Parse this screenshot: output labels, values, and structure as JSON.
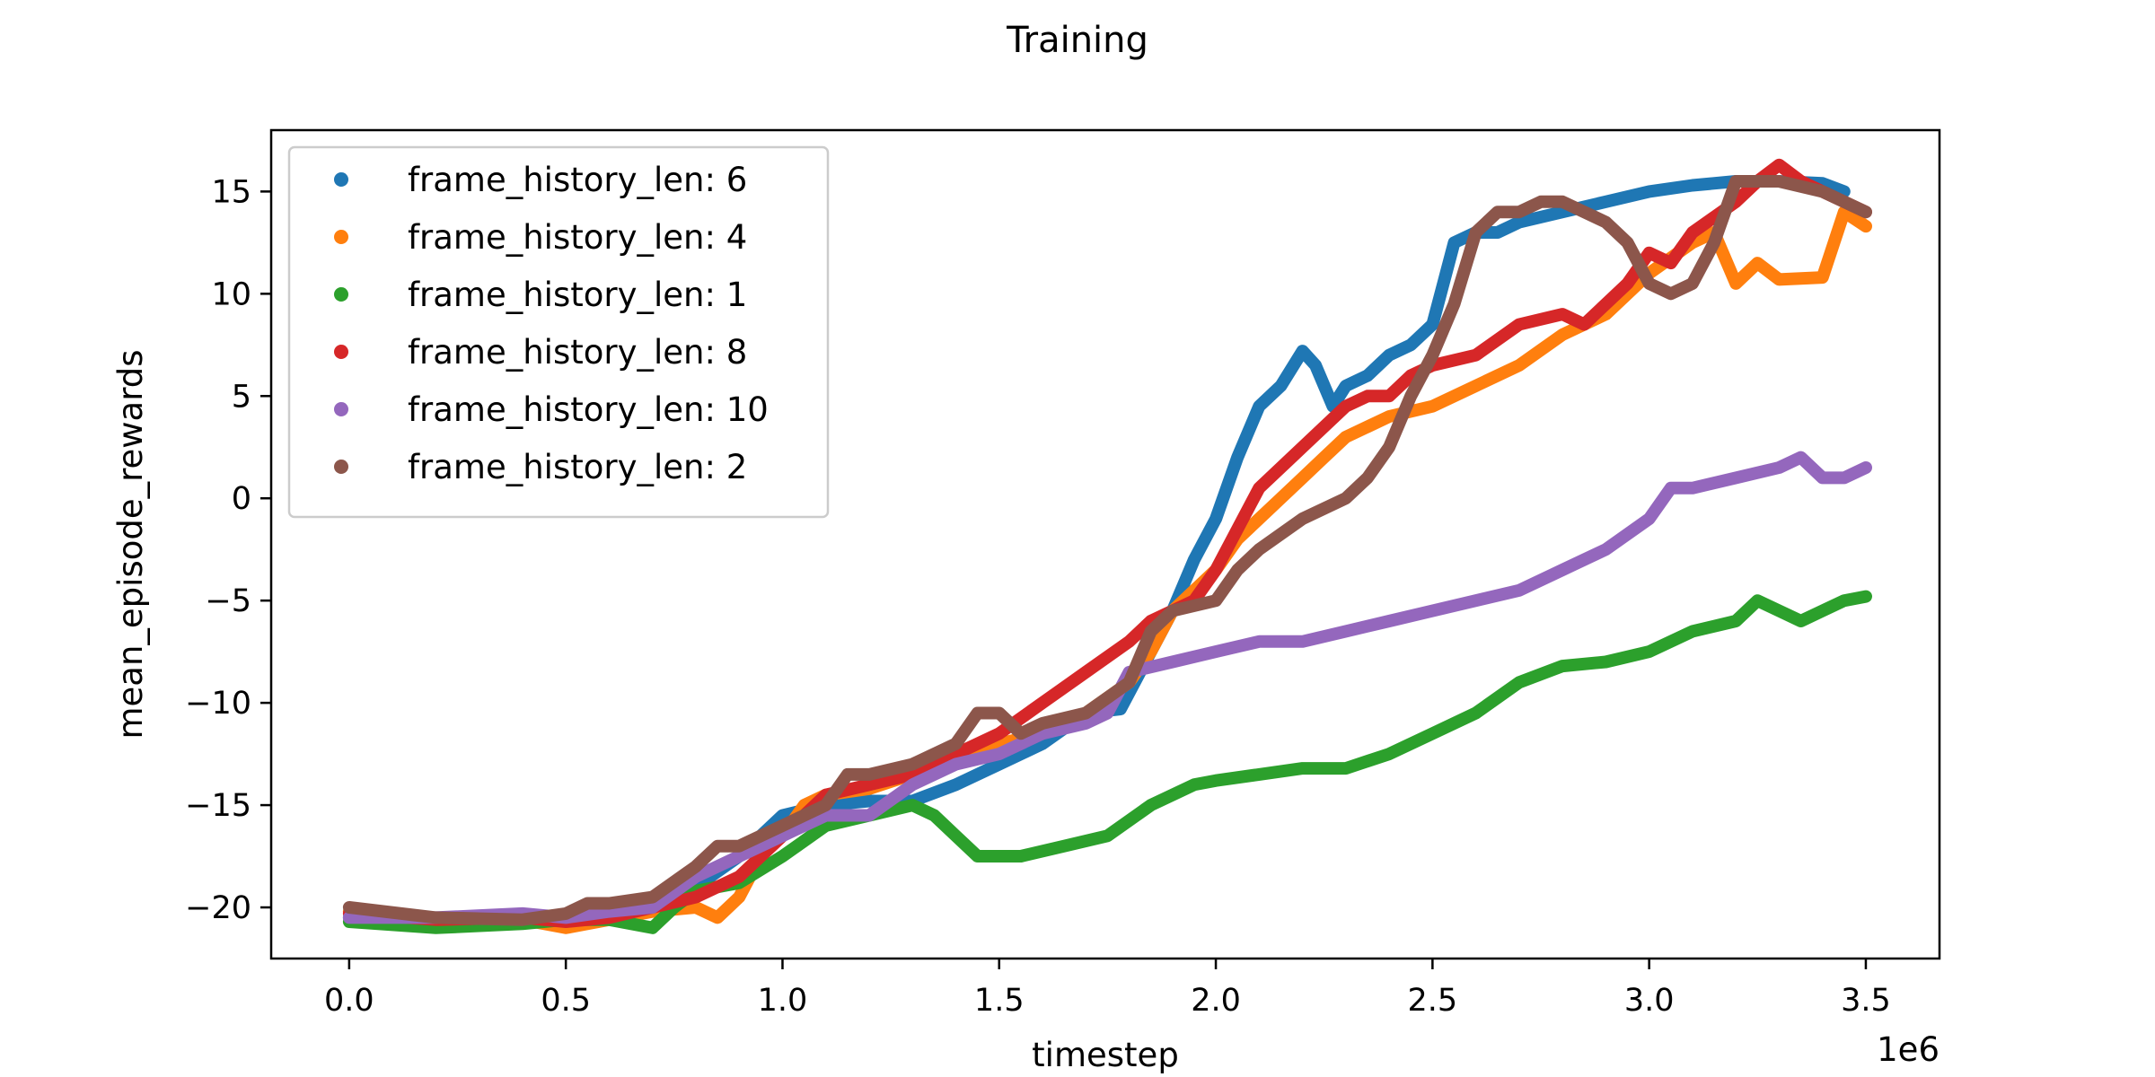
{
  "chart_data": {
    "type": "line",
    "title": "Training",
    "xlabel": "timestep",
    "ylabel": "mean_episode_rewards",
    "x_offset_label": "1e6",
    "xlim": [
      -0.18,
      3.67
    ],
    "ylim": [
      -22.5,
      18.0
    ],
    "x_ticks": [
      0.0,
      0.5,
      1.0,
      1.5,
      2.0,
      2.5,
      3.0,
      3.5
    ],
    "x_tick_labels": [
      "0.0",
      "0.5",
      "1.0",
      "1.5",
      "2.0",
      "2.5",
      "3.0",
      "3.5"
    ],
    "y_ticks": [
      -20,
      -15,
      -10,
      -5,
      0,
      5,
      10,
      15
    ],
    "y_tick_labels": [
      "−20",
      "−15",
      "−10",
      "−5",
      "0",
      "5",
      "10",
      "15"
    ],
    "grid": false,
    "legend_position": "top-left",
    "series": [
      {
        "name": "frame_history_len: 6",
        "color": "#1f77b4",
        "points": [
          [
            0.0,
            -20.5
          ],
          [
            0.2,
            -20.8
          ],
          [
            0.4,
            -20.5
          ],
          [
            0.5,
            -20.4
          ],
          [
            0.6,
            -20.2
          ],
          [
            0.7,
            -19.5
          ],
          [
            0.8,
            -19.0
          ],
          [
            0.9,
            -17.5
          ],
          [
            1.0,
            -15.5
          ],
          [
            1.1,
            -15.0
          ],
          [
            1.2,
            -14.8
          ],
          [
            1.3,
            -14.8
          ],
          [
            1.4,
            -14.0
          ],
          [
            1.5,
            -13.0
          ],
          [
            1.6,
            -12.0
          ],
          [
            1.7,
            -10.5
          ],
          [
            1.78,
            -10.3
          ],
          [
            1.85,
            -7.5
          ],
          [
            1.9,
            -5.5
          ],
          [
            1.95,
            -3.0
          ],
          [
            2.0,
            -1.0
          ],
          [
            2.05,
            2.0
          ],
          [
            2.1,
            4.5
          ],
          [
            2.15,
            5.5
          ],
          [
            2.2,
            7.2
          ],
          [
            2.23,
            6.5
          ],
          [
            2.27,
            4.5
          ],
          [
            2.3,
            5.5
          ],
          [
            2.35,
            6.0
          ],
          [
            2.4,
            7.0
          ],
          [
            2.45,
            7.5
          ],
          [
            2.5,
            8.5
          ],
          [
            2.55,
            12.5
          ],
          [
            2.6,
            13.0
          ],
          [
            2.65,
            13.0
          ],
          [
            2.7,
            13.5
          ],
          [
            2.8,
            14.0
          ],
          [
            2.9,
            14.5
          ],
          [
            3.0,
            15.0
          ],
          [
            3.1,
            15.3
          ],
          [
            3.2,
            15.5
          ],
          [
            3.3,
            15.5
          ],
          [
            3.4,
            15.4
          ],
          [
            3.45,
            15.0
          ]
        ]
      },
      {
        "name": "frame_history_len: 4",
        "color": "#ff7f0e",
        "points": [
          [
            0.0,
            -20.2
          ],
          [
            0.2,
            -20.8
          ],
          [
            0.4,
            -20.6
          ],
          [
            0.5,
            -21.0
          ],
          [
            0.6,
            -20.6
          ],
          [
            0.7,
            -20.2
          ],
          [
            0.8,
            -20.0
          ],
          [
            0.85,
            -20.5
          ],
          [
            0.9,
            -19.5
          ],
          [
            0.95,
            -17.5
          ],
          [
            1.0,
            -16.5
          ],
          [
            1.05,
            -15.0
          ],
          [
            1.1,
            -14.5
          ],
          [
            1.2,
            -14.2
          ],
          [
            1.3,
            -13.5
          ],
          [
            1.4,
            -12.5
          ],
          [
            1.5,
            -12.0
          ],
          [
            1.6,
            -11.5
          ],
          [
            1.7,
            -10.5
          ],
          [
            1.8,
            -9.0
          ],
          [
            1.85,
            -7.5
          ],
          [
            1.9,
            -5.5
          ],
          [
            2.0,
            -3.5
          ],
          [
            2.05,
            -2.0
          ],
          [
            2.1,
            -1.0
          ],
          [
            2.15,
            0.0
          ],
          [
            2.2,
            1.0
          ],
          [
            2.25,
            2.0
          ],
          [
            2.3,
            3.0
          ],
          [
            2.35,
            3.5
          ],
          [
            2.4,
            4.0
          ],
          [
            2.5,
            4.5
          ],
          [
            2.6,
            5.5
          ],
          [
            2.7,
            6.5
          ],
          [
            2.8,
            8.0
          ],
          [
            2.9,
            9.0
          ],
          [
            3.0,
            11.0
          ],
          [
            3.1,
            12.5
          ],
          [
            3.15,
            13.0
          ],
          [
            3.2,
            10.5
          ],
          [
            3.25,
            11.5
          ],
          [
            3.3,
            10.7
          ],
          [
            3.4,
            10.8
          ],
          [
            3.45,
            14.0
          ],
          [
            3.5,
            13.3
          ]
        ]
      },
      {
        "name": "frame_history_len: 1",
        "color": "#2ca02c",
        "points": [
          [
            0.0,
            -20.7
          ],
          [
            0.2,
            -21.0
          ],
          [
            0.4,
            -20.8
          ],
          [
            0.5,
            -20.6
          ],
          [
            0.6,
            -20.6
          ],
          [
            0.7,
            -21.0
          ],
          [
            0.75,
            -20.0
          ],
          [
            0.8,
            -19.2
          ],
          [
            0.9,
            -18.8
          ],
          [
            1.0,
            -17.5
          ],
          [
            1.1,
            -16.0
          ],
          [
            1.2,
            -15.5
          ],
          [
            1.3,
            -15.0
          ],
          [
            1.35,
            -15.5
          ],
          [
            1.4,
            -16.5
          ],
          [
            1.45,
            -17.5
          ],
          [
            1.55,
            -17.5
          ],
          [
            1.65,
            -17.0
          ],
          [
            1.75,
            -16.5
          ],
          [
            1.85,
            -15.0
          ],
          [
            1.95,
            -14.0
          ],
          [
            2.0,
            -13.8
          ],
          [
            2.1,
            -13.5
          ],
          [
            2.2,
            -13.2
          ],
          [
            2.3,
            -13.2
          ],
          [
            2.4,
            -12.5
          ],
          [
            2.5,
            -11.5
          ],
          [
            2.6,
            -10.5
          ],
          [
            2.7,
            -9.0
          ],
          [
            2.8,
            -8.2
          ],
          [
            2.9,
            -8.0
          ],
          [
            3.0,
            -7.5
          ],
          [
            3.1,
            -6.5
          ],
          [
            3.2,
            -6.0
          ],
          [
            3.25,
            -5.0
          ],
          [
            3.3,
            -5.5
          ],
          [
            3.35,
            -6.0
          ],
          [
            3.4,
            -5.5
          ],
          [
            3.45,
            -5.0
          ],
          [
            3.5,
            -4.8
          ]
        ]
      },
      {
        "name": "frame_history_len: 8",
        "color": "#d62728",
        "points": [
          [
            0.0,
            -20.3
          ],
          [
            0.2,
            -20.6
          ],
          [
            0.4,
            -20.5
          ],
          [
            0.5,
            -20.7
          ],
          [
            0.6,
            -20.5
          ],
          [
            0.7,
            -20.0
          ],
          [
            0.8,
            -19.5
          ],
          [
            0.9,
            -18.5
          ],
          [
            1.0,
            -16.5
          ],
          [
            1.1,
            -14.5
          ],
          [
            1.2,
            -14.0
          ],
          [
            1.3,
            -13.5
          ],
          [
            1.4,
            -12.5
          ],
          [
            1.5,
            -11.5
          ],
          [
            1.6,
            -10.0
          ],
          [
            1.7,
            -8.5
          ],
          [
            1.8,
            -7.0
          ],
          [
            1.85,
            -6.0
          ],
          [
            1.9,
            -5.5
          ],
          [
            1.95,
            -5.0
          ],
          [
            2.0,
            -3.5
          ],
          [
            2.05,
            -1.5
          ],
          [
            2.1,
            0.5
          ],
          [
            2.2,
            2.5
          ],
          [
            2.3,
            4.5
          ],
          [
            2.35,
            5.0
          ],
          [
            2.4,
            5.0
          ],
          [
            2.45,
            6.0
          ],
          [
            2.5,
            6.5
          ],
          [
            2.6,
            7.0
          ],
          [
            2.7,
            8.5
          ],
          [
            2.8,
            9.0
          ],
          [
            2.85,
            8.5
          ],
          [
            2.9,
            9.5
          ],
          [
            2.95,
            10.5
          ],
          [
            3.0,
            12.0
          ],
          [
            3.05,
            11.5
          ],
          [
            3.1,
            13.0
          ],
          [
            3.2,
            14.5
          ],
          [
            3.25,
            15.5
          ],
          [
            3.3,
            16.3
          ],
          [
            3.35,
            15.5
          ],
          [
            3.4,
            15.0
          ],
          [
            3.45,
            14.5
          ],
          [
            3.5,
            14.0
          ]
        ]
      },
      {
        "name": "frame_history_len: 10",
        "color": "#9467bd",
        "points": [
          [
            0.0,
            -20.5
          ],
          [
            0.2,
            -20.5
          ],
          [
            0.4,
            -20.3
          ],
          [
            0.5,
            -20.5
          ],
          [
            0.6,
            -20.2
          ],
          [
            0.7,
            -20.0
          ],
          [
            0.8,
            -18.5
          ],
          [
            0.9,
            -17.5
          ],
          [
            1.0,
            -16.5
          ],
          [
            1.1,
            -15.5
          ],
          [
            1.2,
            -15.5
          ],
          [
            1.3,
            -14.0
          ],
          [
            1.4,
            -13.0
          ],
          [
            1.5,
            -12.5
          ],
          [
            1.6,
            -11.5
          ],
          [
            1.7,
            -11.0
          ],
          [
            1.75,
            -10.5
          ],
          [
            1.8,
            -8.5
          ],
          [
            1.9,
            -8.0
          ],
          [
            2.0,
            -7.5
          ],
          [
            2.1,
            -7.0
          ],
          [
            2.2,
            -7.0
          ],
          [
            2.3,
            -6.5
          ],
          [
            2.4,
            -6.0
          ],
          [
            2.5,
            -5.5
          ],
          [
            2.6,
            -5.0
          ],
          [
            2.7,
            -4.5
          ],
          [
            2.8,
            -3.5
          ],
          [
            2.9,
            -2.5
          ],
          [
            3.0,
            -1.0
          ],
          [
            3.05,
            0.5
          ],
          [
            3.1,
            0.5
          ],
          [
            3.2,
            1.0
          ],
          [
            3.3,
            1.5
          ],
          [
            3.35,
            2.0
          ],
          [
            3.4,
            1.0
          ],
          [
            3.45,
            1.0
          ],
          [
            3.5,
            1.5
          ]
        ]
      },
      {
        "name": "frame_history_len: 2",
        "color": "#8c564b",
        "points": [
          [
            0.0,
            -20.0
          ],
          [
            0.2,
            -20.5
          ],
          [
            0.4,
            -20.6
          ],
          [
            0.5,
            -20.3
          ],
          [
            0.55,
            -19.8
          ],
          [
            0.6,
            -19.8
          ],
          [
            0.7,
            -19.5
          ],
          [
            0.8,
            -18.0
          ],
          [
            0.85,
            -17.0
          ],
          [
            0.9,
            -17.0
          ],
          [
            1.0,
            -16.0
          ],
          [
            1.1,
            -15.0
          ],
          [
            1.15,
            -13.5
          ],
          [
            1.2,
            -13.5
          ],
          [
            1.3,
            -13.0
          ],
          [
            1.4,
            -12.0
          ],
          [
            1.45,
            -10.5
          ],
          [
            1.5,
            -10.5
          ],
          [
            1.55,
            -11.5
          ],
          [
            1.6,
            -11.0
          ],
          [
            1.7,
            -10.5
          ],
          [
            1.8,
            -9.0
          ],
          [
            1.85,
            -6.5
          ],
          [
            1.9,
            -5.5
          ],
          [
            2.0,
            -5.0
          ],
          [
            2.05,
            -3.5
          ],
          [
            2.1,
            -2.5
          ],
          [
            2.2,
            -1.0
          ],
          [
            2.3,
            0.0
          ],
          [
            2.35,
            1.0
          ],
          [
            2.4,
            2.5
          ],
          [
            2.45,
            5.0
          ],
          [
            2.5,
            7.0
          ],
          [
            2.55,
            9.5
          ],
          [
            2.6,
            13.0
          ],
          [
            2.65,
            14.0
          ],
          [
            2.7,
            14.0
          ],
          [
            2.75,
            14.5
          ],
          [
            2.8,
            14.5
          ],
          [
            2.85,
            14.0
          ],
          [
            2.9,
            13.5
          ],
          [
            2.95,
            12.5
          ],
          [
            3.0,
            10.5
          ],
          [
            3.05,
            10.0
          ],
          [
            3.1,
            10.5
          ],
          [
            3.15,
            12.5
          ],
          [
            3.2,
            15.5
          ],
          [
            3.3,
            15.5
          ],
          [
            3.4,
            15.0
          ],
          [
            3.45,
            14.5
          ],
          [
            3.5,
            14.0
          ]
        ]
      }
    ]
  }
}
